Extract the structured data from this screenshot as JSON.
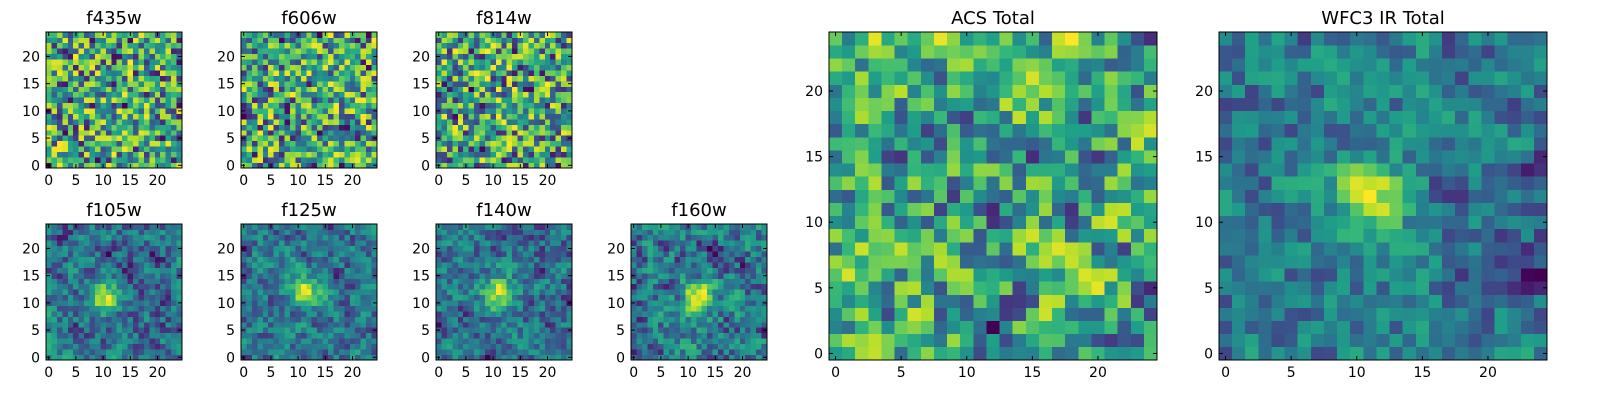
{
  "chart_data": {
    "type": "heatmap",
    "colormap": "viridis",
    "panels": [
      {
        "id": "f435w",
        "title": "f435w",
        "size": 25,
        "xticks": [
          0,
          5,
          10,
          15,
          20
        ],
        "yticks": [
          0,
          5,
          10,
          15,
          20
        ],
        "xlim": [
          -0.5,
          24.5
        ],
        "ylim": [
          -0.5,
          24.5
        ],
        "pattern": "noise",
        "seed": 11
      },
      {
        "id": "f606w",
        "title": "f606w",
        "size": 25,
        "xticks": [
          0,
          5,
          10,
          15,
          20
        ],
        "yticks": [
          0,
          5,
          10,
          15,
          20
        ],
        "xlim": [
          -0.5,
          24.5
        ],
        "ylim": [
          -0.5,
          24.5
        ],
        "pattern": "noise",
        "seed": 22
      },
      {
        "id": "f814w",
        "title": "f814w",
        "size": 25,
        "xticks": [
          0,
          5,
          10,
          15,
          20
        ],
        "yticks": [
          0,
          5,
          10,
          15,
          20
        ],
        "xlim": [
          -0.5,
          24.5
        ],
        "ylim": [
          -0.5,
          24.5
        ],
        "pattern": "noise",
        "seed": 33
      },
      {
        "id": "f105w",
        "title": "f105w",
        "size": 25,
        "xticks": [
          0,
          5,
          10,
          15,
          20
        ],
        "yticks": [
          0,
          5,
          10,
          15,
          20
        ],
        "xlim": [
          -0.5,
          24.5
        ],
        "ylim": [
          -0.5,
          24.5
        ],
        "pattern": "source",
        "source_center": [
          10,
          11
        ],
        "seed": 44
      },
      {
        "id": "f125w",
        "title": "f125w",
        "size": 25,
        "xticks": [
          0,
          5,
          10,
          15,
          20
        ],
        "yticks": [
          0,
          5,
          10,
          15,
          20
        ],
        "xlim": [
          -0.5,
          24.5
        ],
        "ylim": [
          -0.5,
          24.5
        ],
        "pattern": "source",
        "source_center": [
          11,
          12
        ],
        "seed": 55
      },
      {
        "id": "f140w",
        "title": "f140w",
        "size": 25,
        "xticks": [
          0,
          5,
          10,
          15,
          20
        ],
        "yticks": [
          0,
          5,
          10,
          15,
          20
        ],
        "xlim": [
          -0.5,
          24.5
        ],
        "ylim": [
          -0.5,
          24.5
        ],
        "pattern": "source",
        "source_center": [
          11,
          12
        ],
        "seed": 66
      },
      {
        "id": "f160w",
        "title": "f160w",
        "size": 25,
        "xticks": [
          0,
          5,
          10,
          15,
          20
        ],
        "yticks": [
          0,
          5,
          10,
          15,
          20
        ],
        "xlim": [
          -0.5,
          24.5
        ],
        "ylim": [
          -0.5,
          24.5
        ],
        "pattern": "source",
        "source_center": [
          12,
          11
        ],
        "seed": 77
      },
      {
        "id": "acs-total",
        "title": "ACS Total",
        "size": 25,
        "xticks": [
          0,
          5,
          10,
          15,
          20
        ],
        "yticks": [
          0,
          5,
          10,
          15,
          20
        ],
        "xlim": [
          -0.5,
          24.5
        ],
        "ylim": [
          -0.5,
          24.5
        ],
        "pattern": "noise-smooth",
        "seed": 88
      },
      {
        "id": "wfc3-ir-total",
        "title": "WFC3 IR Total",
        "size": 25,
        "xticks": [
          0,
          5,
          10,
          15,
          20
        ],
        "yticks": [
          0,
          5,
          10,
          15,
          20
        ],
        "xlim": [
          -0.5,
          24.5
        ],
        "ylim": [
          -0.5,
          24.5
        ],
        "pattern": "source-smooth",
        "source_center": [
          11,
          12
        ],
        "seed": 99
      }
    ]
  }
}
